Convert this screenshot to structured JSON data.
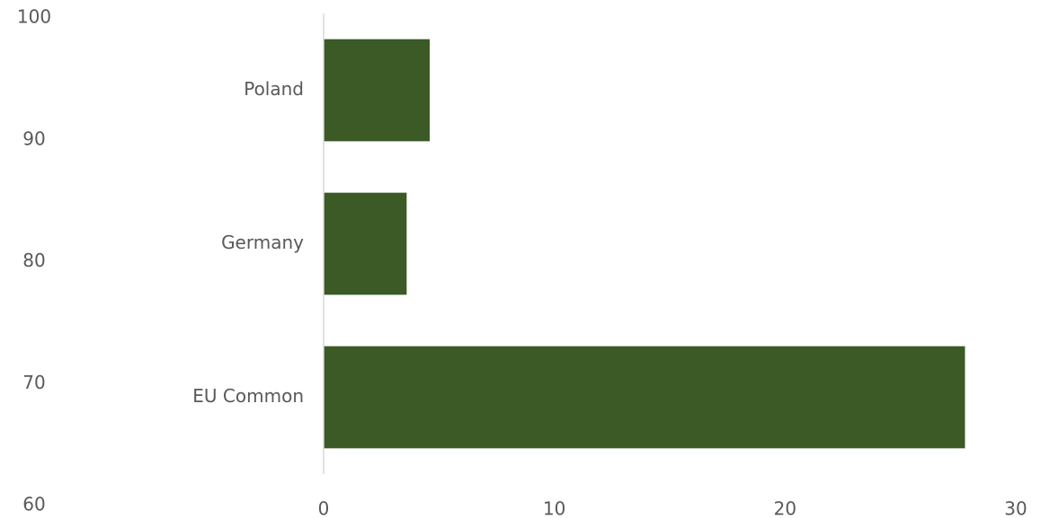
{
  "chart_data": {
    "type": "bar",
    "orientation": "horizontal",
    "categories": [
      "EU Common",
      "Germany",
      "Poland"
    ],
    "series": [
      {
        "values": [
          27.8,
          3.6,
          4.6
        ],
        "color": "#3b5a25"
      }
    ],
    "xlim": [
      0,
      30
    ],
    "x_ticks": [
      "0",
      "10",
      "20",
      "30"
    ],
    "secondary_axis": {
      "side": "left",
      "range": [
        60,
        100
      ],
      "ticks": [
        "60",
        "70",
        "80",
        "90",
        "100"
      ]
    },
    "grid": false,
    "legend": "none",
    "title": "",
    "xlabel": "",
    "ylabel": ""
  }
}
